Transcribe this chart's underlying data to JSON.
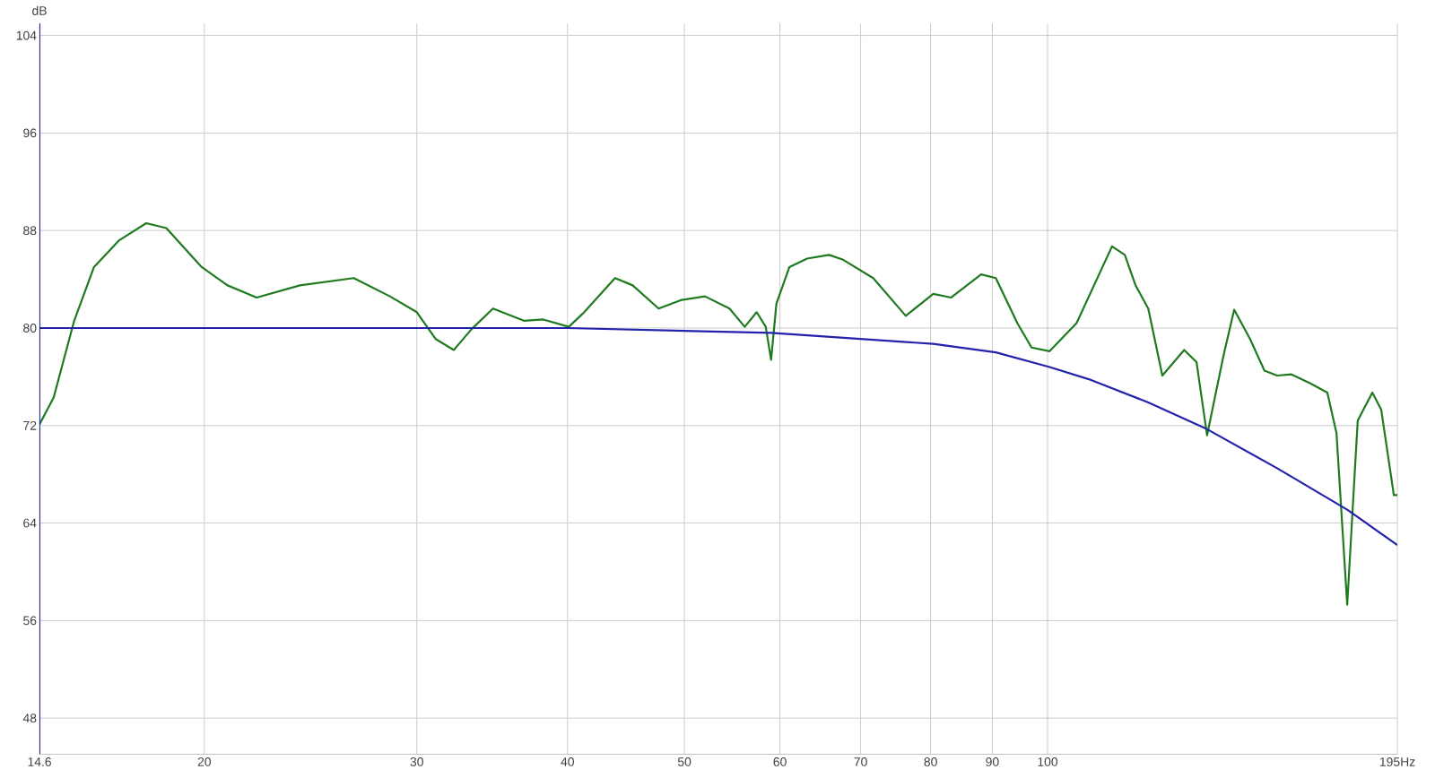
{
  "chart_data": {
    "type": "line",
    "ylabel": "dB",
    "log": "x",
    "grid": true,
    "line_style": "solid",
    "xlim": [
      14.6,
      195
    ],
    "ylim": [
      45,
      105
    ],
    "xticks": [
      {
        "value": 14.6,
        "label": "14.6"
      },
      20,
      30,
      40,
      50,
      60,
      70,
      80,
      90,
      100,
      {
        "value": 195,
        "label": "195Hz"
      }
    ],
    "yticks": [
      48,
      56,
      64,
      72,
      80,
      88,
      96,
      104
    ],
    "series": [
      {
        "color": "#1f7a1f",
        "x": [
          14.6,
          15.0,
          15.6,
          16.2,
          17.0,
          17.9,
          18.6,
          19.9,
          20.9,
          22.1,
          24.0,
          26.6,
          28.5,
          30.0,
          31.1,
          32.2,
          33.3,
          34.7,
          36.8,
          38.2,
          40.1,
          41.2,
          43.8,
          45.3,
          47.6,
          49.7,
          52.0,
          54.5,
          56.1,
          57.4,
          58.4,
          59.0,
          59.6,
          61.1,
          63.2,
          65.9,
          67.7,
          71.7,
          76.3,
          80.4,
          83.2,
          88.1,
          90.6,
          94.4,
          97.0,
          100.4,
          105.7,
          113.1,
          115.9,
          118.3,
          121.2,
          124.5,
          129.8,
          132.9,
          135.6,
          139.9,
          142.8,
          147.2,
          151.3,
          155.0,
          159.3,
          164.9,
          170.6,
          173.6,
          177.2,
          180.8,
          185.9,
          189.1,
          193.7,
          195
        ],
        "values": [
          72.1,
          74.3,
          80.6,
          85,
          87.2,
          88.6,
          88.2,
          85,
          83.5,
          82.5,
          83.5,
          84.1,
          82.6,
          81.3,
          79.1,
          78.2,
          79.9,
          81.6,
          80.6,
          80.7,
          80.1,
          81.2,
          84.1,
          83.5,
          81.6,
          82.3,
          82.6,
          81.6,
          80.1,
          81.3,
          80.1,
          77.4,
          82,
          85,
          85.7,
          86,
          85.6,
          84.1,
          81,
          82.8,
          82.5,
          84.4,
          84.1,
          80.4,
          78.4,
          78.1,
          80.4,
          86.7,
          86,
          83.5,
          81.6,
          76.1,
          78.2,
          77.2,
          71.2,
          77.7,
          81.5,
          79.1,
          76.5,
          76.1,
          76.2,
          75.5,
          74.7,
          71.4,
          57.3,
          72.4,
          74.7,
          73.3,
          66.3,
          66.3
        ]
      },
      {
        "color": "#2222aa",
        "x": [
          14.6,
          25,
          40,
          59,
          80.4,
          90.6,
          100.4,
          108.2,
          121.2,
          135.6,
          155,
          177.2,
          195
        ],
        "values": [
          80,
          80,
          80,
          79.6,
          78.7,
          78,
          76.8,
          75.8,
          73.9,
          71.7,
          68.5,
          65.1,
          62.2
        ]
      }
    ]
  }
}
